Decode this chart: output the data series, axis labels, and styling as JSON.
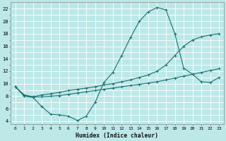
{
  "xlabel": "Humidex (Indice chaleur)",
  "bg_color": "#bce8e8",
  "grid_color": "#ffffff",
  "line_color": "#1a7070",
  "xlim": [
    -0.5,
    23.5
  ],
  "ylim": [
    3.5,
    23.0
  ],
  "xtick_vals": [
    0,
    1,
    2,
    3,
    4,
    5,
    6,
    7,
    8,
    9,
    10,
    11,
    12,
    13,
    14,
    15,
    16,
    17,
    18,
    19,
    20,
    21,
    22,
    23
  ],
  "ytick_vals": [
    4,
    6,
    8,
    10,
    12,
    14,
    16,
    18,
    20,
    22
  ],
  "xminor": [
    0,
    1,
    2,
    3,
    4,
    5,
    6,
    7,
    8,
    9,
    10,
    11,
    12,
    13,
    14,
    15,
    16,
    17,
    18,
    19,
    20,
    21,
    22,
    23
  ],
  "yminor": [
    4,
    5,
    6,
    7,
    8,
    9,
    10,
    11,
    12,
    13,
    14,
    15,
    16,
    17,
    18,
    19,
    20,
    21,
    22
  ],
  "line1_x": [
    0,
    1,
    2,
    3,
    4,
    5,
    6,
    7,
    8,
    9,
    10,
    11,
    12,
    13,
    14,
    15,
    16,
    17,
    18,
    19,
    20,
    21,
    22,
    23
  ],
  "line1_y": [
    9.5,
    8.0,
    7.8,
    6.3,
    5.1,
    5.0,
    4.8,
    4.1,
    4.8,
    7.0,
    10.2,
    11.8,
    14.5,
    17.4,
    20.0,
    21.5,
    22.2,
    21.8,
    18.0,
    12.5,
    11.5,
    10.3,
    10.2,
    11.0
  ],
  "line2_x": [
    0,
    1,
    2,
    3,
    4,
    5,
    6,
    7,
    8,
    9,
    10,
    11,
    12,
    13,
    14,
    15,
    16,
    17,
    18,
    19,
    20,
    21,
    22,
    23
  ],
  "line2_y": [
    9.5,
    8.2,
    7.9,
    8.2,
    8.4,
    8.6,
    8.9,
    9.1,
    9.3,
    9.5,
    9.8,
    10.0,
    10.3,
    10.6,
    11.0,
    11.4,
    12.0,
    13.0,
    14.5,
    16.0,
    17.0,
    17.5,
    17.8,
    18.0
  ],
  "line3_x": [
    0,
    1,
    2,
    3,
    4,
    5,
    6,
    7,
    8,
    9,
    10,
    11,
    12,
    13,
    14,
    15,
    16,
    17,
    18,
    19,
    20,
    21,
    22,
    23
  ],
  "line3_y": [
    9.5,
    8.1,
    7.9,
    7.9,
    8.0,
    8.1,
    8.3,
    8.5,
    8.7,
    8.9,
    9.1,
    9.3,
    9.5,
    9.7,
    9.9,
    10.1,
    10.3,
    10.6,
    10.9,
    11.2,
    11.5,
    11.8,
    12.1,
    12.4
  ]
}
